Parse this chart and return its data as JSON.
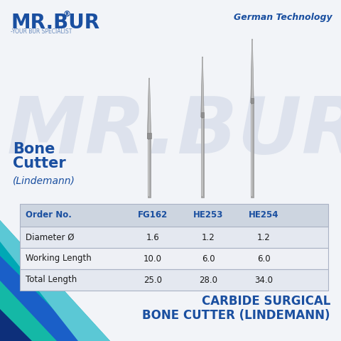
{
  "bg_color": "#f2f4f8",
  "watermark_text": "MR.BUR",
  "german_tech_text": "German Technology",
  "bone_cutter_line1": "Bone",
  "bone_cutter_line2": "Cutter",
  "lindemann_label": "(Lindemann)",
  "bottom_title_line1": "CARBIDE SURGICAL",
  "bottom_title_line2": "BONE CUTTER (LINDEMANN)",
  "table_header": [
    "Order No.",
    "FG162",
    "HE253",
    "HE254"
  ],
  "table_rows": [
    [
      "Diameter Ø",
      "1.6",
      "1.2",
      "1.2"
    ],
    [
      "Working Length",
      "10.0",
      "6.0",
      "6.0"
    ],
    [
      "Total Length",
      "25.0",
      "28.0",
      "34.0"
    ]
  ],
  "header_bg_color": "#cdd5e0",
  "row_bg_even": "#e4e8f0",
  "row_bg_odd": "#eef0f5",
  "brand_blue": "#1a4fa0",
  "header_text_color": "#1a4fa0",
  "table_text_color": "#1a1a1a",
  "german_tech_color": "#1a4fa0",
  "wave_colors": [
    "#1a6ec7",
    "#0d3d8f",
    "#00a0a8",
    "#007b8a",
    "#1a4fa0"
  ],
  "logo_blue": "#1a4fa0",
  "logo_sub": "#6688bb",
  "mr_bur_dot_color": "#1a4fa0"
}
